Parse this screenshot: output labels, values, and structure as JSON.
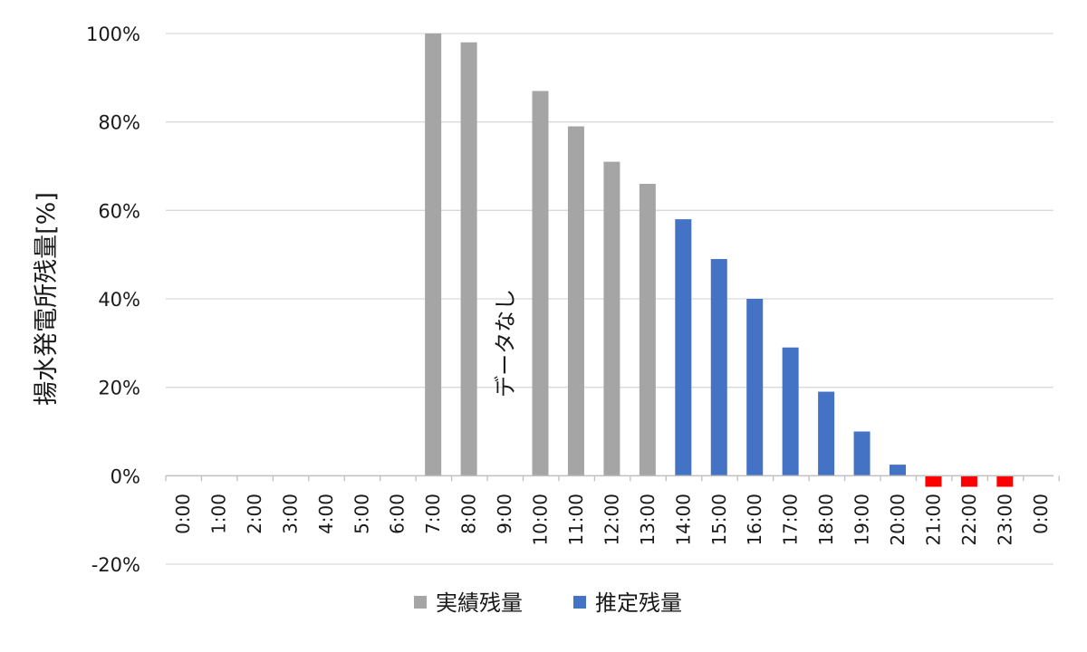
{
  "chart_data": {
    "type": "bar",
    "title": "",
    "ylabel": "揚水発電所残量[%]",
    "xlabel": "",
    "ylim": [
      -20,
      100
    ],
    "yticks": [
      -20,
      0,
      20,
      40,
      60,
      80,
      100
    ],
    "ytick_labels": [
      "-20%",
      "0%",
      "20%",
      "40%",
      "60%",
      "80%",
      "100%"
    ],
    "grid": true,
    "legend_position": "bottom",
    "categories": [
      "0:00",
      "1:00",
      "2:00",
      "3:00",
      "4:00",
      "5:00",
      "6:00",
      "7:00",
      "8:00",
      "9:00",
      "10:00",
      "11:00",
      "12:00",
      "13:00",
      "14:00",
      "15:00",
      "16:00",
      "17:00",
      "18:00",
      "19:00",
      "20:00",
      "21:00",
      "22:00",
      "23:00",
      "0:00"
    ],
    "series": [
      {
        "name": "実績残量",
        "color": "#a5a5a5",
        "values": [
          null,
          null,
          null,
          null,
          null,
          null,
          null,
          100,
          98,
          null,
          87,
          79,
          71,
          66,
          null,
          null,
          null,
          null,
          null,
          null,
          null,
          null,
          null,
          null,
          null
        ]
      },
      {
        "name": "推定残量",
        "color": "#4472c4",
        "values": [
          null,
          null,
          null,
          null,
          null,
          null,
          null,
          null,
          null,
          null,
          null,
          null,
          null,
          null,
          58,
          49,
          40,
          29,
          19,
          10,
          2.5,
          null,
          null,
          null,
          null
        ]
      },
      {
        "name": "",
        "color": "#ff0000",
        "values": [
          null,
          null,
          null,
          null,
          null,
          null,
          null,
          null,
          null,
          null,
          null,
          null,
          null,
          null,
          null,
          null,
          null,
          null,
          null,
          null,
          null,
          -2.5,
          -2.5,
          -2.5,
          null
        ]
      }
    ],
    "annotations": [
      {
        "text": "データなし",
        "category_index": 9,
        "value": 30,
        "orientation": "vertical"
      }
    ]
  }
}
